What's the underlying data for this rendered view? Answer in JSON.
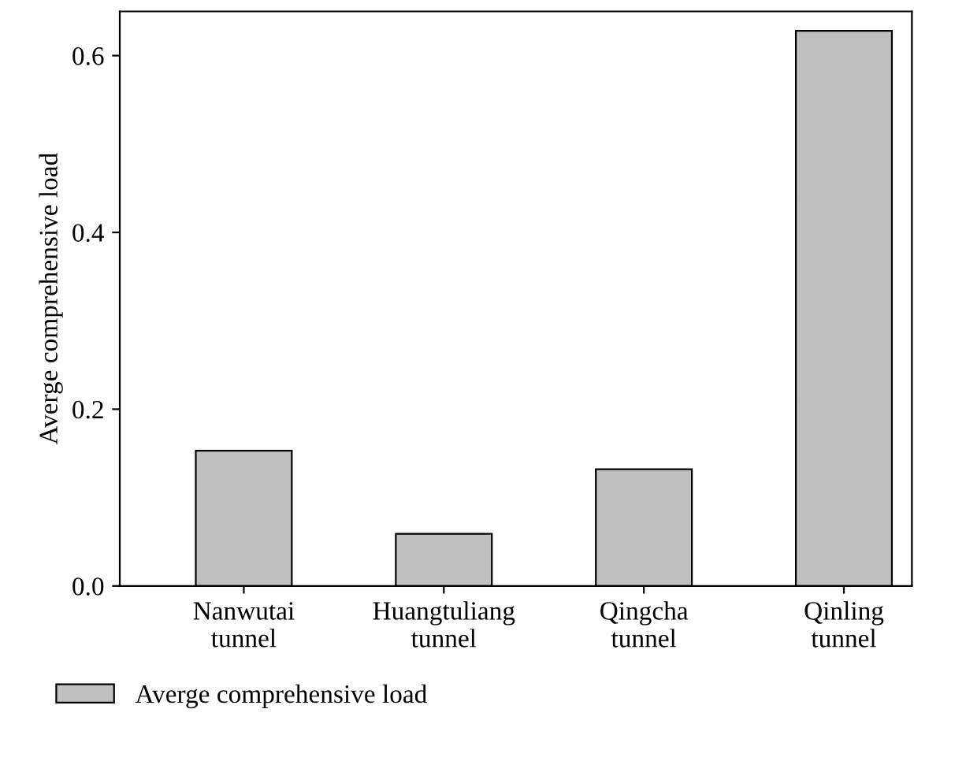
{
  "chart_data": {
    "type": "bar",
    "categories": [
      "Nanwutai\ntunnel",
      "Huangtuliang\ntunnel",
      "Qingcha\ntunnel",
      "Qinling\ntunnel"
    ],
    "series": [
      {
        "name": "Averge comprehensive load",
        "color": "#c0c0c0",
        "values": [
          0.153,
          0.059,
          0.132,
          0.628
        ]
      }
    ],
    "ylabel": "Averge comprehensive load",
    "ylim": [
      0,
      0.65
    ],
    "yticks": [
      {
        "value": 0,
        "label": "0.0"
      },
      0.2,
      0.4,
      0.6
    ],
    "grid": false,
    "legend": "bottom left"
  }
}
